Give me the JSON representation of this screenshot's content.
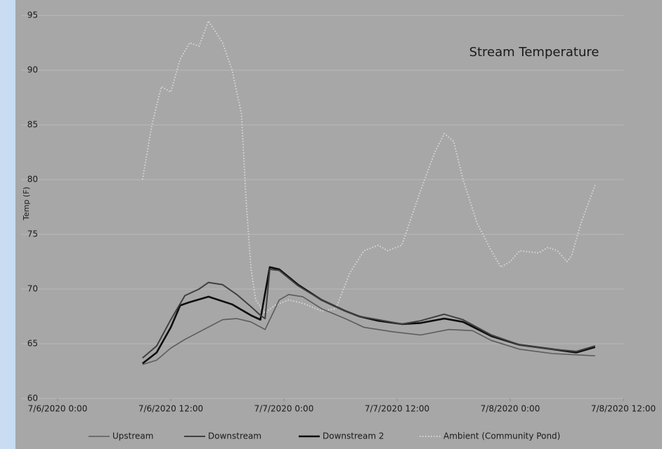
{
  "chart_data": {
    "type": "line",
    "title": "Stream Temperature",
    "y_label": "Temp (F)",
    "xlim": [
      "2020-07-06T00:00",
      "2020-07-08T12:00"
    ],
    "xticks": [
      {
        "value": "2020-07-06T00:00",
        "label": "7/6/2020 0:00"
      },
      {
        "value": "2020-07-06T12:00",
        "label": "7/6/2020 12:00"
      },
      {
        "value": "2020-07-07T00:00",
        "label": "7/7/2020 0:00"
      },
      {
        "value": "2020-07-07T12:00",
        "label": "7/7/2020 12:00"
      },
      {
        "value": "2020-07-08T00:00",
        "label": "7/8/2020 0:00"
      },
      {
        "value": "2020-07-08T12:00",
        "label": "7/8/2020 12:00"
      }
    ],
    "ylim": [
      60,
      95
    ],
    "yticks": [
      60,
      65,
      70,
      75,
      80,
      85,
      90,
      95
    ],
    "grid": true,
    "legend": "bottom",
    "series": [
      {
        "name": "Upstream",
        "color": "#5c5c5c",
        "width": 1.6,
        "dash": "solid",
        "x": [
          "2020-07-06T09:00",
          "2020-07-06T10:30",
          "2020-07-06T12:00",
          "2020-07-06T13:30",
          "2020-07-06T15:30",
          "2020-07-06T17:30",
          "2020-07-06T19:00",
          "2020-07-06T20:30",
          "2020-07-06T22:00",
          "2020-07-06T23:30",
          "2020-07-07T00:30",
          "2020-07-07T02:00",
          "2020-07-07T04:00",
          "2020-07-07T06:30",
          "2020-07-07T08:30",
          "2020-07-07T11:30",
          "2020-07-07T14:30",
          "2020-07-07T17:30",
          "2020-07-07T20:00",
          "2020-07-07T22:00",
          "2020-07-08T01:00",
          "2020-07-08T04:30",
          "2020-07-08T09:00"
        ],
        "values": [
          63.1,
          63.5,
          64.6,
          65.4,
          66.3,
          67.2,
          67.3,
          67,
          66.3,
          69,
          69.5,
          69.3,
          68.2,
          67.3,
          66.5,
          66.1,
          65.8,
          66.3,
          66.2,
          65.3,
          64.5,
          64.1,
          63.9
        ]
      },
      {
        "name": "Downstream",
        "color": "#404040",
        "width": 2,
        "dash": "solid",
        "x": [
          "2020-07-06T09:00",
          "2020-07-06T10:30",
          "2020-07-06T12:00",
          "2020-07-06T13:30",
          "2020-07-06T15:00",
          "2020-07-06T16:00",
          "2020-07-06T17:30",
          "2020-07-06T19:00",
          "2020-07-06T20:30",
          "2020-07-06T21:30",
          "2020-07-06T22:00",
          "2020-07-06T22:30",
          "2020-07-06T23:30",
          "2020-07-07T01:30",
          "2020-07-07T04:00",
          "2020-07-07T06:30",
          "2020-07-07T08:00",
          "2020-07-07T10:00",
          "2020-07-07T12:30",
          "2020-07-07T14:30",
          "2020-07-07T17:00",
          "2020-07-07T19:00",
          "2020-07-07T22:00",
          "2020-07-08T01:00",
          "2020-07-08T04:30",
          "2020-07-08T07:00",
          "2020-07-08T09:00"
        ],
        "values": [
          63.7,
          64.8,
          67.2,
          69.4,
          70,
          70.6,
          70.4,
          69.5,
          68.4,
          67.6,
          67.3,
          71.8,
          71.7,
          70.3,
          69,
          68,
          67.5,
          67.2,
          66.8,
          67.1,
          67.7,
          67.2,
          65.8,
          64.9,
          64.5,
          64.3,
          64.8
        ]
      },
      {
        "name": "Downstream 2",
        "color": "#0d0d0d",
        "width": 2.6,
        "dash": "solid",
        "x": [
          "2020-07-06T09:00",
          "2020-07-06T10:30",
          "2020-07-06T12:00",
          "2020-07-06T13:00",
          "2020-07-06T14:00",
          "2020-07-06T16:00",
          "2020-07-06T18:30",
          "2020-07-06T20:30",
          "2020-07-06T21:30",
          "2020-07-06T22:30",
          "2020-07-06T23:30",
          "2020-07-07T01:30",
          "2020-07-07T04:00",
          "2020-07-07T06:30",
          "2020-07-07T08:00",
          "2020-07-07T10:00",
          "2020-07-07T12:30",
          "2020-07-07T14:30",
          "2020-07-07T17:00",
          "2020-07-07T19:00",
          "2020-07-07T22:00",
          "2020-07-08T01:00",
          "2020-07-08T04:30",
          "2020-07-08T07:00",
          "2020-07-08T09:00"
        ],
        "values": [
          63.2,
          64.2,
          66.5,
          68.5,
          68.8,
          69.3,
          68.6,
          67.6,
          67.2,
          72,
          71.8,
          70.4,
          69,
          68,
          67.5,
          67.1,
          66.8,
          66.9,
          67.3,
          67,
          65.7,
          64.9,
          64.5,
          64.2,
          64.7
        ]
      },
      {
        "name": "Ambient (Community Pond)",
        "color": "#d8d8d8",
        "width": 2,
        "dash": "dotted",
        "x": [
          "2020-07-06T09:00",
          "2020-07-06T10:00",
          "2020-07-06T11:00",
          "2020-07-06T12:00",
          "2020-07-06T13:00",
          "2020-07-06T14:00",
          "2020-07-06T15:00",
          "2020-07-06T16:00",
          "2020-07-06T17:30",
          "2020-07-06T18:30",
          "2020-07-06T19:30",
          "2020-07-06T20:00",
          "2020-07-06T20:30",
          "2020-07-06T21:00",
          "2020-07-06T22:00",
          "2020-07-06T23:00",
          "2020-07-07T00:30",
          "2020-07-07T02:00",
          "2020-07-07T04:00",
          "2020-07-07T05:30",
          "2020-07-07T07:00",
          "2020-07-07T08:30",
          "2020-07-07T10:00",
          "2020-07-07T11:00",
          "2020-07-07T12:30",
          "2020-07-07T14:30",
          "2020-07-07T16:00",
          "2020-07-07T17:00",
          "2020-07-07T18:00",
          "2020-07-07T19:00",
          "2020-07-07T20:30",
          "2020-07-07T22:00",
          "2020-07-07T23:00",
          "2020-07-08T00:00",
          "2020-07-08T01:00",
          "2020-07-08T03:00",
          "2020-07-08T04:00",
          "2020-07-08T05:00",
          "2020-07-08T06:00",
          "2020-07-08T06:30",
          "2020-07-08T07:30",
          "2020-07-08T09:00"
        ],
        "values": [
          80,
          85,
          88.5,
          88,
          91,
          92.5,
          92.2,
          94.5,
          92.5,
          90,
          86,
          78,
          72,
          69,
          67.8,
          68.5,
          69,
          68.7,
          68,
          68.2,
          71.5,
          73.5,
          74,
          73.5,
          74,
          79,
          82.5,
          84.2,
          83.5,
          80,
          76,
          73.5,
          72,
          72.5,
          73.5,
          73.3,
          73.8,
          73.5,
          72.5,
          73,
          76,
          79.5
        ]
      }
    ]
  }
}
